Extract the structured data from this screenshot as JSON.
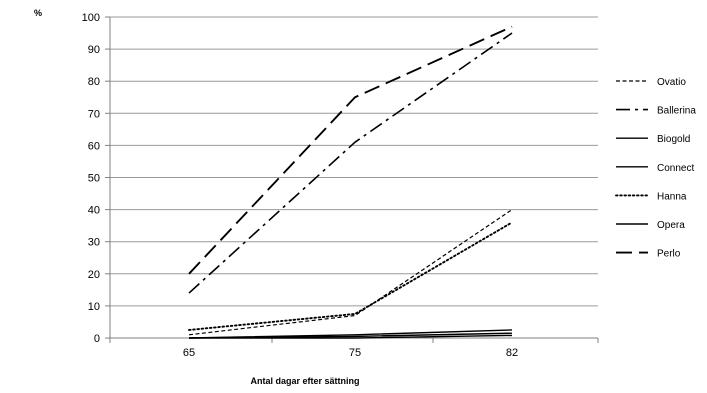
{
  "chart_data": {
    "type": "line",
    "title": "",
    "ylabel": "%",
    "xlabel": "Antal dagar efter sättning",
    "categories": [
      "65",
      "75",
      "82"
    ],
    "ylim": [
      0,
      100
    ],
    "ytick_step": 10,
    "grid": true,
    "legend_position": "right",
    "series": [
      {
        "name": "Ovatio",
        "values": [
          1,
          7,
          40
        ],
        "style": "short-dash"
      },
      {
        "name": "Ballerina",
        "values": [
          14,
          61,
          95
        ],
        "style": "dash-dot"
      },
      {
        "name": "Biogold",
        "values": [
          0,
          1,
          2.5
        ],
        "style": "solid"
      },
      {
        "name": "Connect",
        "values": [
          0,
          0.5,
          1.5
        ],
        "style": "solid"
      },
      {
        "name": "Hanna",
        "values": [
          2.5,
          7.5,
          36
        ],
        "style": "dotted"
      },
      {
        "name": "Opera",
        "values": [
          0,
          0,
          0.8
        ],
        "style": "solid"
      },
      {
        "name": "Perlo",
        "values": [
          20,
          75,
          97
        ],
        "style": "long-dash"
      }
    ]
  }
}
